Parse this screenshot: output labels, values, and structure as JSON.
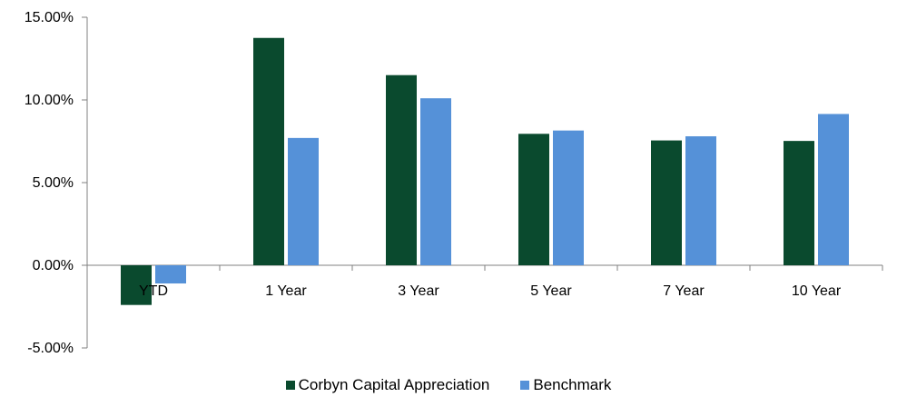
{
  "chart_data": {
    "type": "bar",
    "categories": [
      "YTD",
      "1 Year",
      "3 Year",
      "5 Year",
      "7 Year",
      "10 Year"
    ],
    "series": [
      {
        "name": "Corbyn Capital Appreciation",
        "color": "#0a4a2e",
        "values": [
          -2.4,
          13.75,
          11.5,
          7.95,
          7.55,
          7.52
        ]
      },
      {
        "name": "Benchmark",
        "color": "#5591d8",
        "values": [
          -1.1,
          7.7,
          10.1,
          8.15,
          7.8,
          9.15
        ]
      }
    ],
    "ylim": [
      -5,
      15
    ],
    "yticks": [
      -5,
      0,
      5,
      10,
      15
    ],
    "ytick_labels": [
      "-5.00%",
      "0.00%",
      "5.00%",
      "10.00%",
      "15.00%"
    ],
    "legend_position": "bottom-center",
    "grid": false
  }
}
